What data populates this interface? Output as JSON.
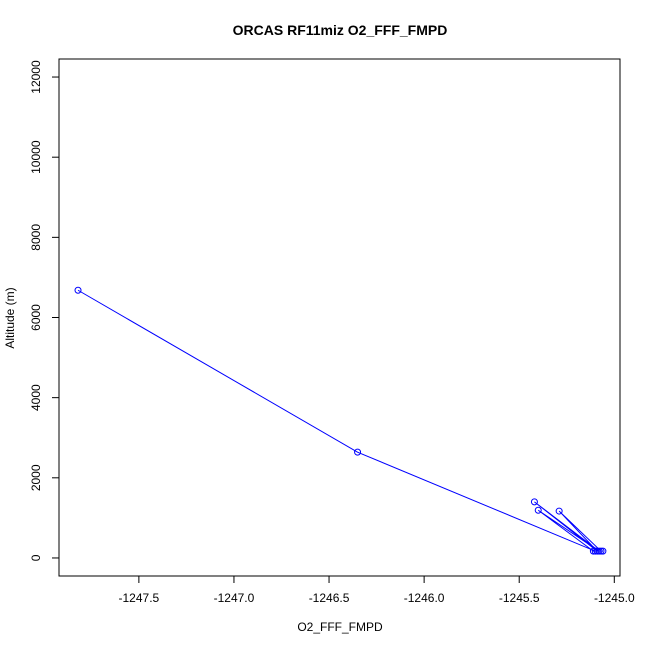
{
  "chart_data": {
    "type": "line",
    "title": "ORCAS RF11miz O2_FFF_FMPD",
    "xlabel": "O2_FFF_FMPD",
    "ylabel": "Altitude (m)",
    "xlim": [
      -1247.92,
      -1244.97
    ],
    "ylim": [
      -450,
      12450
    ],
    "xticks": [
      -1247.5,
      -1247.0,
      -1246.5,
      -1246.0,
      -1245.5,
      -1245.0
    ],
    "xtick_labels": [
      "-1247.5",
      "-1247.0",
      "-1246.5",
      "-1246.0",
      "-1245.5",
      "-1245.0"
    ],
    "yticks": [
      0,
      2000,
      4000,
      6000,
      8000,
      10000,
      12000
    ],
    "ytick_labels": [
      "0",
      "2000",
      "4000",
      "6000",
      "8000",
      "10000",
      "12000"
    ],
    "grid": false,
    "series": [
      {
        "color": "#0000ff",
        "marker": "open-circle",
        "points": [
          {
            "x": -1247.82,
            "y": 6680
          },
          {
            "x": -1246.35,
            "y": 2640
          },
          {
            "x": -1245.1,
            "y": 170
          },
          {
            "x": -1245.07,
            "y": 170
          },
          {
            "x": -1245.29,
            "y": 1170
          },
          {
            "x": -1245.09,
            "y": 170
          },
          {
            "x": -1245.42,
            "y": 1400
          },
          {
            "x": -1245.08,
            "y": 170
          },
          {
            "x": -1245.4,
            "y": 1190
          },
          {
            "x": -1245.11,
            "y": 170
          },
          {
            "x": -1245.06,
            "y": 170
          }
        ]
      }
    ]
  }
}
